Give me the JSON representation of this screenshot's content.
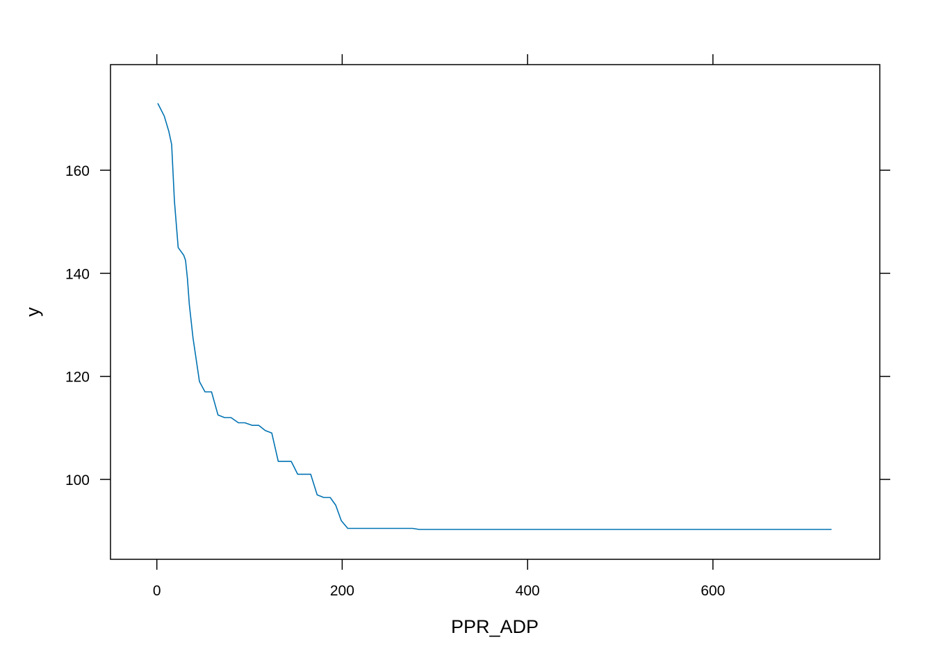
{
  "chart_data": {
    "type": "line",
    "title": "",
    "xlabel": "PPR_ADP",
    "ylabel": "y",
    "xlim": [
      -50,
      780
    ],
    "ylim": [
      84.5,
      180.5
    ],
    "x_ticks": [
      0,
      200,
      400,
      600
    ],
    "y_ticks": [
      100,
      120,
      140,
      160
    ],
    "grid": false,
    "line_color": "#0072B2",
    "series": [
      {
        "x": [
          1,
          8,
          13,
          16,
          19,
          23,
          29,
          31,
          33,
          35,
          39,
          46,
          52,
          59,
          66,
          73,
          80,
          88,
          95,
          103,
          110,
          117,
          124,
          131,
          138,
          145,
          152,
          159,
          166,
          173,
          180,
          187,
          193,
          199,
          206,
          213,
          220,
          227,
          234,
          241,
          248,
          255,
          262,
          269,
          276,
          283,
          400,
          600,
          728
        ],
        "y": [
          173,
          170.5,
          167.5,
          165,
          154,
          145,
          143.5,
          142.5,
          139,
          134,
          127.5,
          119,
          117,
          117,
          112.5,
          112,
          112,
          111,
          111,
          110.5,
          110.5,
          109.5,
          109,
          103.5,
          103.5,
          103.5,
          101,
          101,
          101,
          97,
          96.5,
          96.5,
          95,
          92,
          90.5,
          90.5,
          90.5,
          90.5,
          90.5,
          90.5,
          90.5,
          90.5,
          90.5,
          90.5,
          90.5,
          90.3,
          90.3,
          90.3,
          90.3
        ]
      }
    ]
  }
}
